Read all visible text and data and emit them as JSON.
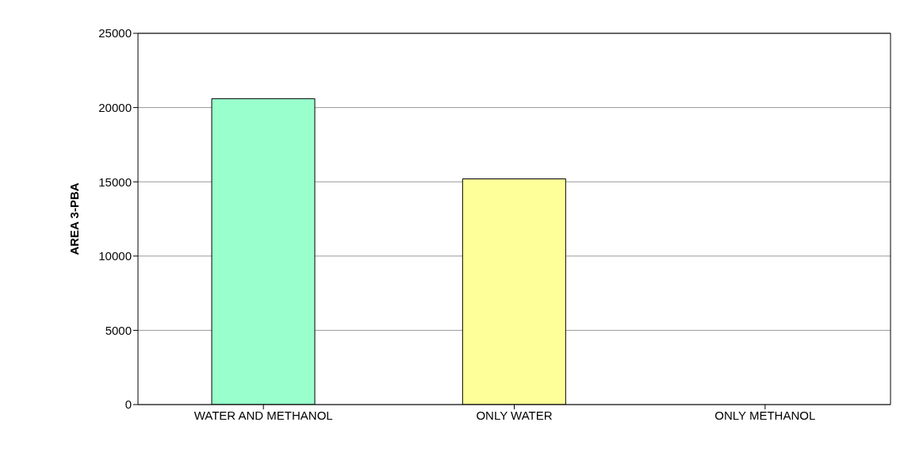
{
  "chart_data": {
    "type": "bar",
    "ylabel": "AREA 3-PBA",
    "categories": [
      "WATER AND METHANOL",
      "ONLY WATER",
      "ONLY METHANOL"
    ],
    "values": [
      20600,
      15200,
      0
    ],
    "colors": [
      "#99ffcc",
      "#ffff99",
      "#ffffff"
    ],
    "ylim": [
      0,
      25000
    ],
    "yticks": [
      0,
      5000,
      10000,
      15000,
      20000,
      25000
    ],
    "grid": "y"
  }
}
